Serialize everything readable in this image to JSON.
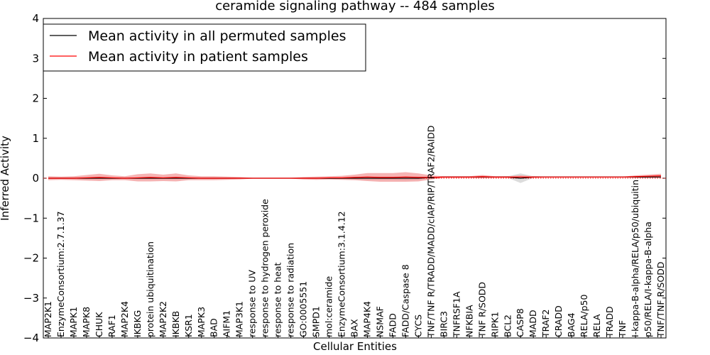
{
  "chart_data": {
    "type": "line",
    "title": "ceramide signaling pathway -- 484 samples",
    "xlabel": "Cellular Entities",
    "ylabel": "Inferred Activity",
    "ylim": [
      -4,
      4
    ],
    "yticks": [
      4,
      3,
      2,
      1,
      0,
      -1,
      -2,
      -3,
      -4
    ],
    "ytick_labels": [
      "4",
      "3",
      "2",
      "1",
      "0",
      "−1",
      "−2",
      "−3",
      "−4"
    ],
    "legend_position": "top-left",
    "colors": {
      "permuted": "#000000",
      "patient": "#ff0000",
      "patient_band": "#f08080",
      "permuted_band": "#c0c0c0",
      "zero_line": "#ff0000"
    },
    "categories": [
      "MAP2K1",
      "EnzymeConsortium:2.7.1.37",
      "MAPK1",
      "MAPK8",
      "CHUK",
      "RAF1",
      "MAP2K4",
      "IKBKG",
      "protein ubiquitination",
      "MAP2K2",
      "IKBKB",
      "KSR1",
      "MAPK3",
      "BAD",
      "AIFM1",
      "MAP3K1",
      "response to UV",
      "response to hydrogen peroxide",
      "response to heat",
      "response to radiation",
      "GO:0005551",
      "SMPD1",
      "mol:ceramide",
      "EnzymeConsortium:3.1.4.12",
      "BAX",
      "MAP4K4",
      "NSMAF",
      "FADD",
      "FADD/Caspase 8",
      "CYCS",
      "TNF/TNF R/TRADD/MADD/cIAP/RIP/TRAF2/RAIDD",
      "BIRC3",
      "TNFRSF1A",
      "NFKBIA",
      "TNF R/SODD",
      "RIPK1",
      "BCL2",
      "CASP8",
      "MADD",
      "TRAF2",
      "CRADD",
      "BAG4",
      "RELA/p50",
      "RELA",
      "TRADD",
      "TNF",
      "I-kappa-B-alpha/RELA/p50/ubiquitin",
      "p50/RELA/I-kappa-B-alpha",
      "TNF/TNF R/SODD"
    ],
    "series": [
      {
        "name": "Mean activity in all permuted samples",
        "values": [
          0.0,
          0.0,
          0.0,
          0.0,
          0.0,
          0.0,
          0.0,
          0.0,
          0.0,
          0.0,
          0.0,
          0.0,
          0.0,
          0.0,
          0.0,
          0.0,
          0.0,
          0.0,
          0.0,
          0.0,
          0.0,
          0.0,
          0.0,
          0.0,
          0.0,
          0.0,
          0.0,
          0.0,
          0.0,
          0.0,
          0.02,
          0.03,
          0.03,
          0.03,
          0.03,
          0.03,
          0.03,
          0.0,
          0.03,
          0.03,
          0.03,
          0.03,
          0.03,
          0.03,
          0.03,
          0.03,
          0.03,
          0.03,
          0.03
        ],
        "spread": [
          0.02,
          0.02,
          0.02,
          0.03,
          0.02,
          0.02,
          0.02,
          0.02,
          0.02,
          0.02,
          0.02,
          0.02,
          0.02,
          0.02,
          0.02,
          0.01,
          0.0,
          0.0,
          0.0,
          0.0,
          0.01,
          0.02,
          0.02,
          0.02,
          0.03,
          0.04,
          0.04,
          0.04,
          0.05,
          0.04,
          0.02,
          0.01,
          0.01,
          0.01,
          0.01,
          0.01,
          0.02,
          0.12,
          0.02,
          0.01,
          0.01,
          0.01,
          0.01,
          0.01,
          0.01,
          0.01,
          0.01,
          0.01,
          0.01
        ]
      },
      {
        "name": "Mean activity in patient samples",
        "values": [
          0.0,
          0.0,
          0.0,
          0.01,
          0.02,
          0.01,
          0.0,
          0.01,
          0.02,
          0.01,
          0.02,
          0.01,
          0.0,
          0.0,
          0.0,
          0.0,
          0.0,
          0.0,
          0.0,
          0.0,
          0.0,
          0.0,
          0.01,
          0.01,
          0.02,
          0.03,
          0.02,
          0.02,
          0.03,
          0.02,
          0.02,
          0.03,
          0.03,
          0.03,
          0.04,
          0.03,
          0.03,
          0.03,
          0.03,
          0.03,
          0.03,
          0.03,
          0.03,
          0.03,
          0.03,
          0.03,
          0.04,
          0.05,
          0.06
        ],
        "spread": [
          0.05,
          0.04,
          0.05,
          0.07,
          0.09,
          0.06,
          0.05,
          0.09,
          0.1,
          0.08,
          0.1,
          0.06,
          0.05,
          0.05,
          0.04,
          0.03,
          0.01,
          0.0,
          0.0,
          0.01,
          0.03,
          0.04,
          0.04,
          0.05,
          0.07,
          0.1,
          0.11,
          0.11,
          0.12,
          0.1,
          0.05,
          0.02,
          0.02,
          0.02,
          0.04,
          0.02,
          0.02,
          0.04,
          0.02,
          0.01,
          0.01,
          0.01,
          0.01,
          0.01,
          0.01,
          0.01,
          0.03,
          0.04,
          0.05
        ]
      }
    ]
  }
}
